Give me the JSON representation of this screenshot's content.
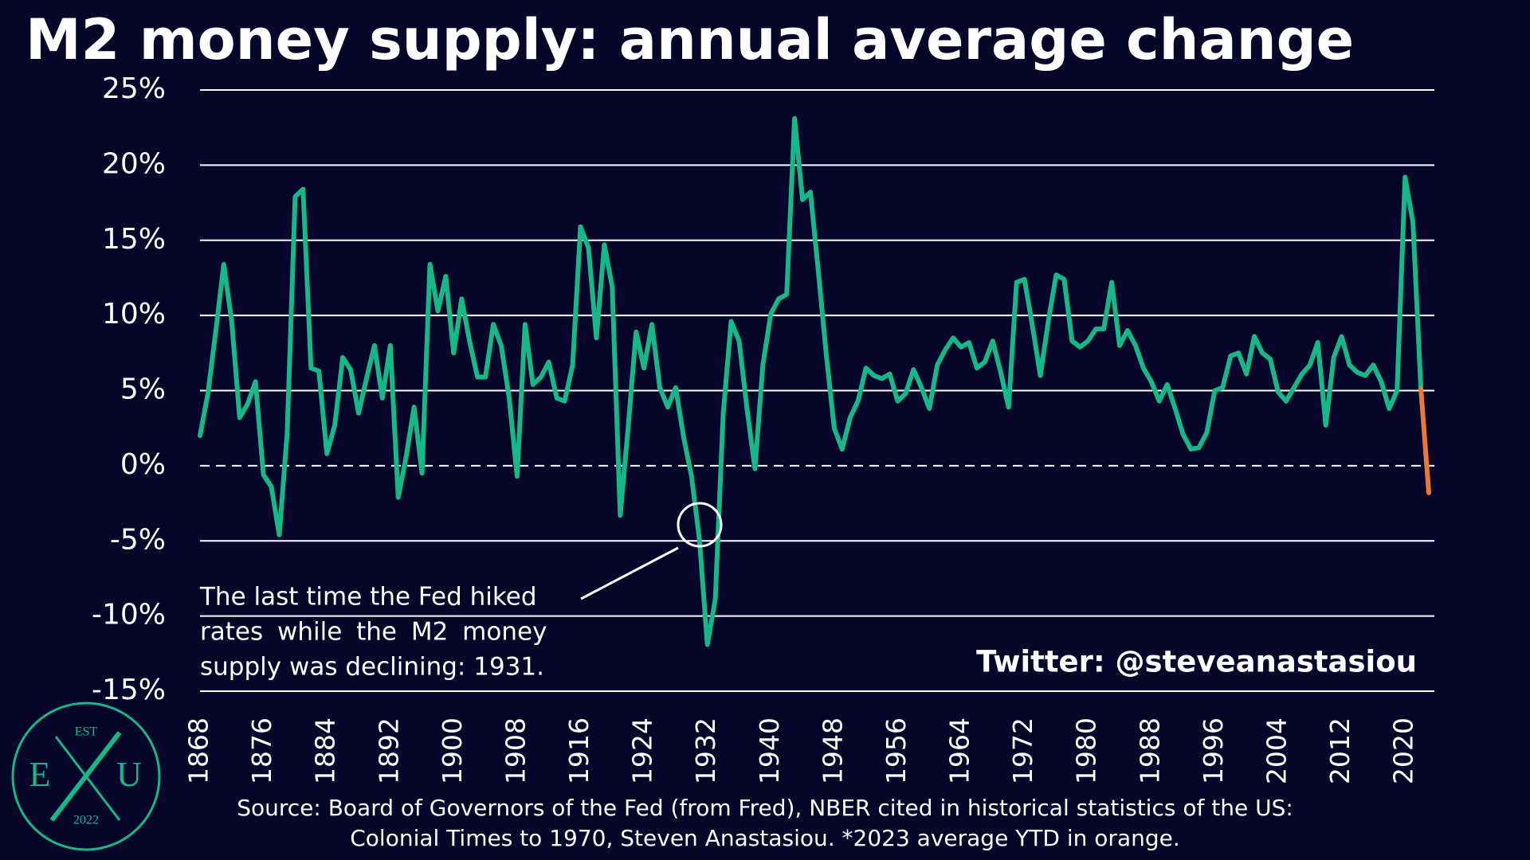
{
  "chart_data": {
    "type": "line",
    "title": "M2 money supply: annual average change",
    "x": [
      1868,
      1869,
      1870,
      1871,
      1872,
      1873,
      1874,
      1875,
      1876,
      1877,
      1878,
      1879,
      1880,
      1881,
      1882,
      1883,
      1884,
      1885,
      1886,
      1887,
      1888,
      1889,
      1890,
      1891,
      1892,
      1893,
      1894,
      1895,
      1896,
      1897,
      1898,
      1899,
      1900,
      1901,
      1902,
      1903,
      1904,
      1905,
      1906,
      1907,
      1908,
      1909,
      1910,
      1911,
      1912,
      1913,
      1914,
      1915,
      1916,
      1917,
      1918,
      1919,
      1920,
      1921,
      1922,
      1923,
      1924,
      1925,
      1926,
      1927,
      1928,
      1929,
      1930,
      1931,
      1932,
      1933,
      1934,
      1935,
      1936,
      1937,
      1938,
      1939,
      1940,
      1941,
      1942,
      1943,
      1944,
      1945,
      1946,
      1947,
      1948,
      1949,
      1950,
      1951,
      1952,
      1953,
      1954,
      1955,
      1956,
      1957,
      1958,
      1959,
      1960,
      1961,
      1962,
      1963,
      1964,
      1965,
      1966,
      1967,
      1968,
      1969,
      1970,
      1971,
      1972,
      1973,
      1974,
      1975,
      1976,
      1977,
      1978,
      1979,
      1980,
      1981,
      1982,
      1983,
      1984,
      1985,
      1986,
      1987,
      1988,
      1989,
      1990,
      1991,
      1992,
      1993,
      1994,
      1995,
      1996,
      1997,
      1998,
      1999,
      2000,
      2001,
      2002,
      2003,
      2004,
      2005,
      2006,
      2007,
      2008,
      2009,
      2010,
      2011,
      2012,
      2013,
      2014,
      2015,
      2016,
      2017,
      2018,
      2019,
      2020,
      2021,
      2022,
      2023
    ],
    "series": [
      {
        "color": "#17b887",
        "values": [
          2.0,
          4.8,
          9.0,
          13.4,
          9.6,
          3.2,
          4.1,
          5.6,
          -0.6,
          -1.4,
          -4.6,
          2.2,
          17.9,
          18.4,
          6.5,
          6.3,
          0.8,
          2.7,
          7.2,
          6.4,
          3.5,
          5.8,
          8.0,
          4.5,
          8.0,
          -2.1,
          0.6,
          3.9,
          -0.5,
          13.4,
          10.3,
          12.6,
          7.5,
          11.1,
          8.3,
          5.9,
          5.9,
          9.4,
          8.0,
          4.5,
          -0.7,
          9.4,
          5.4,
          5.9,
          6.9,
          4.5,
          4.3,
          6.7,
          15.9,
          14.5,
          8.5,
          14.7,
          11.9,
          -3.3,
          2.5,
          8.9,
          6.5,
          9.4,
          5.2,
          3.9,
          5.2,
          1.9,
          -0.7,
          -4.9,
          -11.9,
          -8.9,
          3.5,
          9.6,
          8.3,
          3.8,
          -0.2,
          6.7,
          10.1,
          11.1,
          11.4,
          23.1,
          17.7,
          18.2,
          12.9,
          7.4,
          2.5,
          1.1,
          3.2,
          4.3,
          6.5,
          6.0,
          5.8,
          6.1,
          4.3,
          4.8,
          6.4,
          5.2,
          3.8,
          6.7,
          7.7,
          8.5,
          7.9,
          8.2,
          6.5,
          6.9,
          8.3,
          6.2,
          3.9,
          12.2,
          12.4,
          9.3,
          6.0,
          9.6,
          12.7,
          12.4,
          8.3,
          7.9,
          8.3,
          9.1,
          9.1,
          12.2,
          8.0,
          9.0,
          8.0,
          6.5,
          5.6,
          4.3,
          5.4,
          3.8,
          2.1,
          1.1,
          1.2,
          2.2,
          5.0,
          5.2,
          7.3,
          7.5,
          6.1,
          8.6,
          7.5,
          7.1,
          4.9,
          4.3,
          5.2,
          6.1,
          6.7,
          8.2,
          2.7,
          7.2,
          8.6,
          6.7,
          6.2,
          6.0,
          6.7,
          5.6,
          3.8,
          5.0,
          19.2,
          16.2,
          5.1,
          null
        ]
      },
      {
        "color": "#e8793a",
        "values": [
          null,
          null,
          null,
          null,
          null,
          null,
          null,
          null,
          null,
          null,
          null,
          null,
          null,
          null,
          null,
          null,
          null,
          null,
          null,
          null,
          null,
          null,
          null,
          null,
          null,
          null,
          null,
          null,
          null,
          null,
          null,
          null,
          null,
          null,
          null,
          null,
          null,
          null,
          null,
          null,
          null,
          null,
          null,
          null,
          null,
          null,
          null,
          null,
          null,
          null,
          null,
          null,
          null,
          null,
          null,
          null,
          null,
          null,
          null,
          null,
          null,
          null,
          null,
          null,
          null,
          null,
          null,
          null,
          null,
          null,
          null,
          null,
          null,
          null,
          null,
          null,
          null,
          null,
          null,
          null,
          null,
          null,
          null,
          null,
          null,
          null,
          null,
          null,
          null,
          null,
          null,
          null,
          null,
          null,
          null,
          null,
          null,
          null,
          null,
          null,
          null,
          null,
          null,
          null,
          null,
          null,
          null,
          null,
          null,
          null,
          null,
          null,
          null,
          null,
          null,
          null,
          null,
          null,
          null,
          null,
          null,
          null,
          null,
          null,
          null,
          null,
          null,
          null,
          null,
          null,
          null,
          null,
          null,
          null,
          null,
          null,
          null,
          null,
          null,
          null,
          null,
          null,
          null,
          null,
          null,
          null,
          null,
          null,
          null,
          null,
          null,
          null,
          null,
          null,
          null,
          -1.8
        ]
      }
    ],
    "xlim": [
      1868,
      2023
    ],
    "xticks": [
      1868,
      1876,
      1884,
      1892,
      1900,
      1908,
      1916,
      1924,
      1932,
      1940,
      1948,
      1956,
      1964,
      1972,
      1980,
      1988,
      1996,
      2004,
      2012,
      2020
    ],
    "ylim": [
      -15,
      25
    ],
    "yticks": [
      {
        "value": -15,
        "label": "-15%"
      },
      {
        "value": -10,
        "label": "-10%"
      },
      {
        "value": -5,
        "label": "-5%"
      },
      {
        "value": 0,
        "label": "0%"
      },
      {
        "value": 5,
        "label": "5%"
      },
      {
        "value": 10,
        "label": "10%"
      },
      {
        "value": 15,
        "label": "15%"
      },
      {
        "value": 20,
        "label": "20%"
      },
      {
        "value": 25,
        "label": "25%"
      }
    ],
    "grid": true,
    "annotation": [
      "The last time the Fed hiked",
      "rates while the M2 money",
      "supply was declining: 1931."
    ],
    "credit": "Twitter: @steveanastasiou",
    "source": [
      "Source: Board of Governors of the Fed (from Fred), NBER cited in historical statistics of the US:",
      "Colonial Times to 1970, Steven Anastasiou. *2023 average YTD in orange."
    ]
  },
  "logo": {
    "top": "EST",
    "left": "E",
    "right": "U",
    "bottom": "2022"
  }
}
